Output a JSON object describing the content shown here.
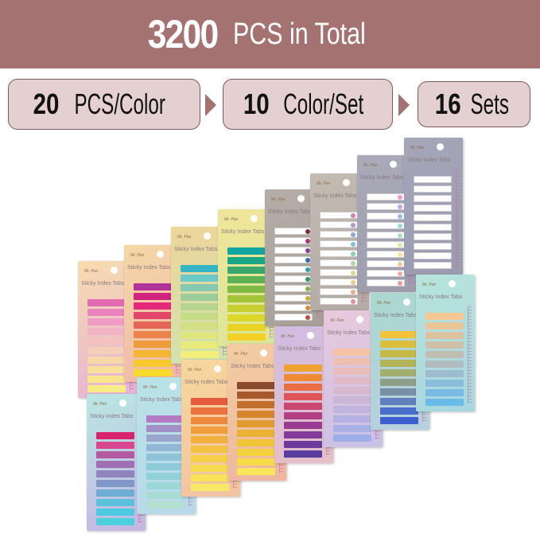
{
  "banner": {
    "number": "3200",
    "text": "PCS in Total",
    "color": "#a37271"
  },
  "steps": [
    {
      "number": "20",
      "text": "PCS/Color"
    },
    {
      "number": "10",
      "text": "Color/Set"
    },
    {
      "number": "16",
      "text": "Sets"
    }
  ],
  "product": {
    "brand": "Mr. Pen",
    "label": "Sticky Index Tabs"
  },
  "sets": [
    {
      "bg": [
        "#f7dcb0",
        "#e6b2d6"
      ],
      "tabs": [
        "#e26ab0",
        "#ea82bd",
        "#ef9cc6",
        "#f2b2c6",
        "#f4c1c0",
        "#f6cfb8",
        "#f7d9a9",
        "#f8e09a",
        "#f8e68c",
        "#f9ec86"
      ]
    },
    {
      "bg": [
        "#f5d7a7",
        "#f0b8a8"
      ],
      "tabs": [
        "#b0329a",
        "#d2237f",
        "#e5287a",
        "#e2466a",
        "#e56659",
        "#ea844a",
        "#ef9d3c",
        "#f4b635",
        "#f6c92f",
        "#f8da2e"
      ]
    },
    {
      "bg": [
        "#eed59a",
        "#cfe3b0"
      ],
      "tabs": [
        "#34b6c6",
        "#6cc9c9",
        "#86c9b2",
        "#9dcc9c",
        "#b6d58f",
        "#c7dc86",
        "#d3e083",
        "#e0e67e",
        "#e8ea7a",
        "#f1ee79"
      ]
    },
    {
      "bg": [
        "#efe59a",
        "#d9e79a"
      ],
      "tabs": [
        "#10a5a0",
        "#19a685",
        "#3aa86a",
        "#5eb055",
        "#7fba45",
        "#a5c538",
        "#c6d031",
        "#dcd72b",
        "#ead327",
        "#f4cf25"
      ]
    },
    {
      "bg": [
        "#b5ada6",
        "#a79f98"
      ],
      "dots": true,
      "tabs": [
        "#7b2d3a",
        "#b13672",
        "#8a3d9b",
        "#3c67b3",
        "#31a0b8",
        "#2b9a6a",
        "#8bb03b",
        "#c8b033",
        "#d88a35",
        "#c34c3a"
      ]
    },
    {
      "bg": [
        "#c4bbb3",
        "#b2aaa3"
      ],
      "dots": true,
      "tabs": [
        "#d77fb1",
        "#b794cf",
        "#8fa6d8",
        "#7fc3d6",
        "#88cfb7",
        "#aedb99",
        "#d8dc88",
        "#f0c98a",
        "#f2a98c",
        "#ea8b9a"
      ]
    },
    {
      "bg": [
        "#aaaab8",
        "#9d9cad"
      ],
      "dots": true,
      "tabs": [
        "#f09ac6",
        "#c8a7e1",
        "#9dbbe8",
        "#9cdcd6",
        "#a8e3bb",
        "#d4ec9f",
        "#f5e79a",
        "#f5c99a",
        "#f3ab9f",
        "#e99a9a"
      ]
    },
    {
      "bg": [
        "#a5a6b8",
        "#9a9bb0"
      ],
      "dots": true,
      "tabs": [
        "#ffffff",
        "#ffffff",
        "#ffffff",
        "#ffffff",
        "#ffffff",
        "#ffffff",
        "#ffffff",
        "#ffffff",
        "#ffffff",
        "#ffffff"
      ]
    },
    {
      "bg": [
        "#b9e7e3",
        "#c5b6e2"
      ],
      "tabs": [
        "#d8236f",
        "#d94690",
        "#b45aa3",
        "#9e6fb2",
        "#8f84bd",
        "#7f98c9",
        "#6eaed5",
        "#5ac0dc",
        "#4dcae0",
        "#4bd0dd"
      ]
    },
    {
      "bg": [
        "#b9e3e6",
        "#b8d8ec"
      ],
      "tabs": [
        "#b27ac1",
        "#a38fc8",
        "#9aa5ce",
        "#92b6d5",
        "#8fc2d8",
        "#8fcad9",
        "#93d1d8",
        "#9cd7d5",
        "#a8dcd2",
        "#b4e0cf"
      ]
    },
    {
      "bg": [
        "#f6d79c",
        "#f2c3a2"
      ],
      "tabs": [
        "#e45a3d",
        "#ea733e",
        "#ee8a3d",
        "#f19f3d",
        "#f2b13f",
        "#f3c242",
        "#f5cf47",
        "#f6da4f",
        "#f7e25a",
        "#f8e866"
      ]
    },
    {
      "bg": [
        "#f3cda2",
        "#eeb6a0"
      ],
      "tabs": [
        "#8a4a2e",
        "#a65a2c",
        "#c26e2c",
        "#d4852e",
        "#e09b30",
        "#eab233",
        "#f0c537",
        "#f4d23e",
        "#f6dc48",
        "#f8e55a"
      ]
    },
    {
      "bg": [
        "#cfbde3",
        "#e6bfc8"
      ],
      "tabs": [
        "#f0a230",
        "#ef8a35",
        "#e96e43",
        "#de5358",
        "#c94770",
        "#b23f83",
        "#9a3b92",
        "#823b98",
        "#6c3b9c",
        "#583d9e"
      ]
    },
    {
      "bg": [
        "#e9c9dc",
        "#c8c1e6"
      ],
      "tabs": [
        "#f3c3a4",
        "#eebfae",
        "#e8bcb9",
        "#e0bac4",
        "#d7b8cf",
        "#ccb6d8",
        "#c1b4df",
        "#b5b2e3",
        "#a9b0e6",
        "#9eaee8"
      ]
    },
    {
      "bg": [
        "#a9d9cf",
        "#b7cfe0"
      ],
      "tabs": [
        "#f1c23a",
        "#dcbd3c",
        "#c5b845",
        "#b3b357",
        "#a3ad6e",
        "#8e9f87",
        "#7790a5",
        "#5f7fbd",
        "#4a6ecb",
        "#3c5fcf"
      ]
    },
    {
      "bg": [
        "#b8e4dc",
        "#a8d6e0"
      ],
      "tabs": [
        "#f4c890",
        "#eac597",
        "#ddc29f",
        "#d0bfa8",
        "#c1bdb3",
        "#b0bcc0",
        "#9ebccd",
        "#8abcdb",
        "#7abbe3",
        "#6bbbe9"
      ]
    }
  ]
}
